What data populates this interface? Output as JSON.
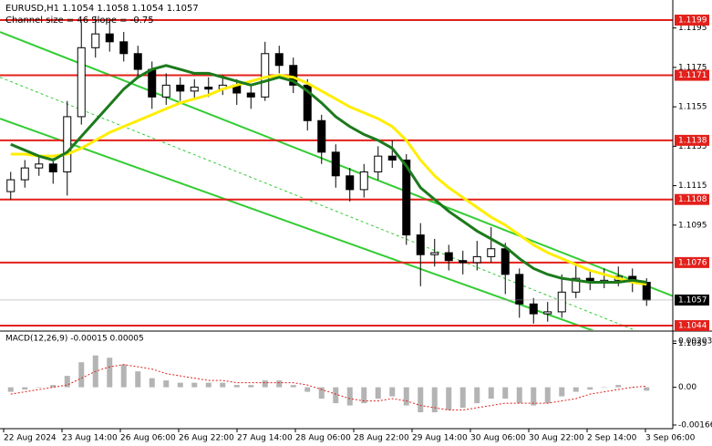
{
  "chart_data": {
    "type": "candlestick",
    "title": "EURUSD,H1  1.1054 1.1058 1.1054 1.1057",
    "subtitle": "Channel size = 46 Slope = -0.75",
    "open": [
      1.1112,
      1.1118,
      1.1124,
      1.1126,
      1.1122,
      1.115,
      1.1185,
      1.1192,
      1.1188,
      1.1182,
      1.1174,
      1.116,
      1.1166,
      1.1163,
      1.1165,
      1.1164,
      1.1166,
      1.1162,
      1.116,
      1.1182,
      1.1176,
      1.1166,
      1.1148,
      1.1132,
      1.112,
      1.1113,
      1.1122,
      1.113,
      1.1128,
      1.109,
      1.108,
      1.1081,
      1.1077,
      1.1076,
      1.1079,
      1.1083,
      1.107,
      1.1055,
      1.105,
      1.1051,
      1.1061,
      1.1068,
      1.1066,
      1.1067,
      1.1069,
      1.1066
    ],
    "high": [
      1.1122,
      1.1128,
      1.113,
      1.1129,
      1.1158,
      1.1198,
      1.1201,
      1.1199,
      1.1193,
      1.1186,
      1.1178,
      1.1172,
      1.117,
      1.1169,
      1.117,
      1.1171,
      1.1169,
      1.1166,
      1.1188,
      1.1186,
      1.118,
      1.1169,
      1.1151,
      1.1136,
      1.1124,
      1.1126,
      1.1135,
      1.1138,
      1.1131,
      1.1096,
      1.1088,
      1.1085,
      1.1082,
      1.1087,
      1.1094,
      1.1086,
      1.1073,
      1.1058,
      1.1056,
      1.107,
      1.1075,
      1.1072,
      1.1073,
      1.1074,
      1.1073,
      1.1068
    ],
    "low": [
      1.1108,
      1.1114,
      1.112,
      1.1116,
      1.111,
      1.1146,
      1.118,
      1.1183,
      1.1178,
      1.117,
      1.1154,
      1.1156,
      1.1158,
      1.1159,
      1.116,
      1.1161,
      1.1156,
      1.1154,
      1.1158,
      1.1172,
      1.1162,
      1.1143,
      1.1126,
      1.1114,
      1.1107,
      1.1109,
      1.1118,
      1.1124,
      1.1085,
      1.1064,
      1.1074,
      1.1072,
      1.107,
      1.1072,
      1.1076,
      1.106,
      1.1048,
      1.1045,
      1.1046,
      1.1048,
      1.1058,
      1.1062,
      1.1063,
      1.1064,
      1.1061,
      1.1054
    ],
    "close": [
      1.1118,
      1.1124,
      1.1126,
      1.1122,
      1.115,
      1.1185,
      1.1192,
      1.1188,
      1.1182,
      1.1174,
      1.116,
      1.1166,
      1.1163,
      1.1165,
      1.1164,
      1.1166,
      1.1162,
      1.116,
      1.1182,
      1.1176,
      1.1166,
      1.1148,
      1.1132,
      1.112,
      1.1113,
      1.1122,
      1.113,
      1.1128,
      1.109,
      1.108,
      1.1081,
      1.1077,
      1.1076,
      1.1079,
      1.1083,
      1.107,
      1.1055,
      1.105,
      1.1051,
      1.1061,
      1.1068,
      1.1066,
      1.1067,
      1.1069,
      1.1066,
      1.1057
    ],
    "moving_averages": [
      {
        "color": "#ffee00",
        "values": [
          1.1131,
          1.1131,
          1.113,
          1.113,
          1.1131,
          1.1134,
          1.1138,
          1.1142,
          1.1145,
          1.1148,
          1.1151,
          1.1154,
          1.1157,
          1.1159,
          1.1161,
          1.1164,
          1.1166,
          1.1168,
          1.117,
          1.1171,
          1.117,
          1.1167,
          1.1163,
          1.1159,
          1.1155,
          1.1152,
          1.1149,
          1.1145,
          1.1138,
          1.1128,
          1.112,
          1.1114,
          1.1109,
          1.1104,
          1.1099,
          1.1095,
          1.109,
          1.1085,
          1.1081,
          1.1078,
          1.1075,
          1.1072,
          1.107,
          1.1068,
          1.1066,
          1.1065
        ]
      },
      {
        "color": "#1c7a1c",
        "values": [
          1.1136,
          1.1133,
          1.113,
          1.1128,
          1.1132,
          1.114,
          1.1148,
          1.1156,
          1.1164,
          1.117,
          1.1174,
          1.1176,
          1.1174,
          1.1172,
          1.1172,
          1.117,
          1.1168,
          1.1166,
          1.1168,
          1.117,
          1.1168,
          1.1163,
          1.1157,
          1.115,
          1.1145,
          1.1141,
          1.1138,
          1.1134,
          1.1125,
          1.1114,
          1.1108,
          1.1102,
          1.1097,
          1.1092,
          1.1088,
          1.1084,
          1.1078,
          1.1073,
          1.107,
          1.1068,
          1.1067,
          1.1066,
          1.1066,
          1.1066,
          1.1067,
          1.1066
        ]
      }
    ],
    "channels": [
      {
        "from": 1.1193,
        "to": 1.1059,
        "color": "#33cc33",
        "dashed": false
      },
      {
        "from": 1.1149,
        "to": 1.1027,
        "color": "#33cc33",
        "dashed": false
      },
      {
        "from": 1.117,
        "to": 1.1034,
        "color": "#33cc33",
        "dashed": true
      }
    ],
    "levels": {
      "values": [
        1.1199,
        1.1171,
        1.1138,
        1.1108,
        1.1076,
        1.1044
      ],
      "color": "#e3201b"
    },
    "current_price": 1.1057,
    "ylim": [
      1.10417,
      1.12092
    ],
    "yticks": [
      1.1195,
      1.1175,
      1.1155,
      1.1135,
      1.1115,
      1.1095,
      1.1035
    ],
    "x_labels": [
      "22 Aug 2024",
      "23 Aug 14:00",
      "26 Aug 06:00",
      "26 Aug 22:00",
      "27 Aug 14:00",
      "28 Aug 06:00",
      "28 Aug 22:00",
      "29 Aug 14:00",
      "30 Aug 06:00",
      "30 Aug 22:00",
      "2 Sep 14:00",
      "3 Sep 06:00"
    ],
    "macd": {
      "title": "MACD(12,26,9) -0.00015 0.00005",
      "histogram": [
        -0.0002,
        -0.0001,
        0.0,
        0.0001,
        0.0005,
        0.0011,
        0.0014,
        0.0013,
        0.001,
        0.0007,
        0.0004,
        0.0003,
        0.0002,
        0.0002,
        0.0002,
        0.0002,
        0.0001,
        0.0001,
        0.0003,
        0.0003,
        0.0001,
        -0.0002,
        -0.0005,
        -0.0007,
        -0.0008,
        -0.0007,
        -0.0005,
        -0.0004,
        -0.0008,
        -0.0011,
        -0.0011,
        -0.001,
        -0.0009,
        -0.0007,
        -0.0005,
        -0.0005,
        -0.0007,
        -0.0008,
        -0.0007,
        -0.0004,
        -0.0002,
        -0.0001,
        0.0,
        0.0001,
        0.0,
        -0.00015
      ],
      "signal": [
        -0.0003,
        -0.0002,
        -0.0001,
        0.0,
        0.0001,
        0.0004,
        0.0007,
        0.0009,
        0.001,
        0.0009,
        0.0008,
        0.0006,
        0.0005,
        0.0004,
        0.0003,
        0.0003,
        0.0002,
        0.0002,
        0.0002,
        0.0002,
        0.0002,
        0.0001,
        -0.0001,
        -0.0003,
        -0.0005,
        -0.0006,
        -0.0006,
        -0.0005,
        -0.0006,
        -0.0008,
        -0.0009,
        -0.001,
        -0.001,
        -0.0009,
        -0.0008,
        -0.0007,
        -0.0007,
        -0.0007,
        -0.0007,
        -0.0006,
        -0.0005,
        -0.0003,
        -0.0002,
        -0.0001,
        0.0,
        5e-05
      ],
      "histogram_color": "#b4b4b4",
      "signal_color": "#e3201b",
      "ylim": [
        -0.00166,
        0.00203
      ],
      "yticks": [
        0.00203,
        {
          "value": 0,
          "label": "0.00"
        },
        -0.00166
      ]
    }
  }
}
